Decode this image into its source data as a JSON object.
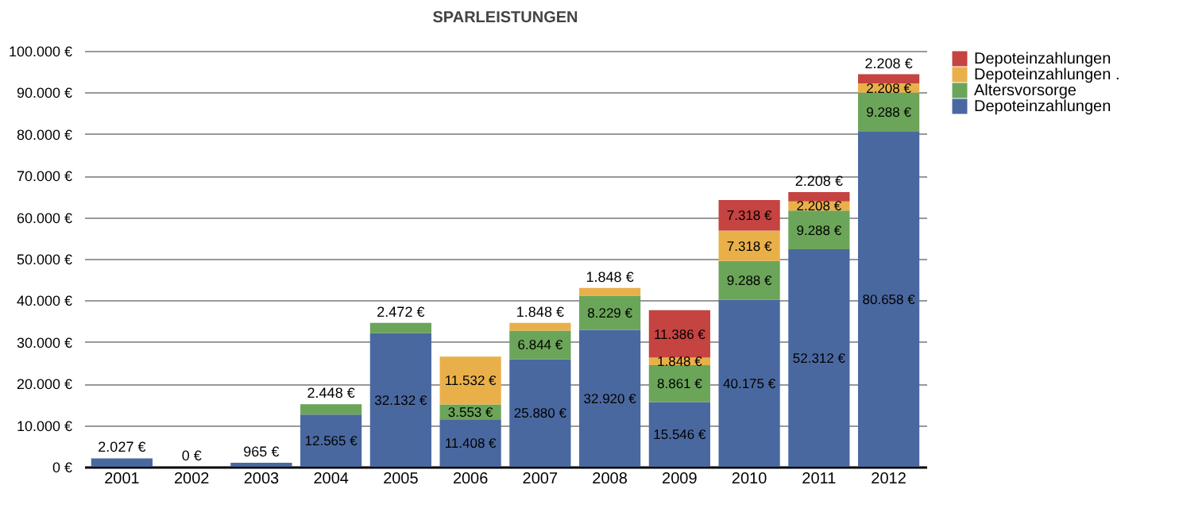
{
  "chart_data": {
    "type": "bar",
    "title": "SPARLEISTUNGEN",
    "stacked": true,
    "categories": [
      "2001",
      "2002",
      "2003",
      "2004",
      "2005",
      "2006",
      "2007",
      "2008",
      "2009",
      "2010",
      "2011",
      "2012"
    ],
    "series": [
      {
        "name": "Depoteinzahlungen",
        "color": "#4a68a0",
        "values": [
          2027,
          0,
          965,
          12565,
          32132,
          11408,
          25880,
          32920,
          15546,
          40175,
          52312,
          80658
        ],
        "value_labels": [
          "2.027 €",
          "0 €",
          "965 €",
          "12.565 €",
          "32.132 €",
          "11.408 €",
          "25.880 €",
          "32.920 €",
          "15.546 €",
          "40.175 €",
          "52.312 €",
          "80.658 €"
        ]
      },
      {
        "name": "Altersvorsorge",
        "color": "#6ba559",
        "values": [
          null,
          null,
          null,
          2448,
          2472,
          3553,
          6844,
          8229,
          8861,
          9288,
          9288,
          9288
        ],
        "value_labels": [
          null,
          null,
          null,
          "2.448 €",
          "2.472 €",
          "3.553 €",
          "6.844 €",
          "8.229 €",
          "8.861 €",
          "9.288 €",
          "9.288 €",
          "9.288 €"
        ]
      },
      {
        "name": "Depoteinzahlungen .",
        "color": "#e9b04a",
        "values": [
          null,
          null,
          null,
          null,
          null,
          11532,
          1848,
          1848,
          1848,
          7318,
          2208,
          2208
        ],
        "value_labels": [
          null,
          null,
          null,
          null,
          null,
          "11.532 €",
          "1.848 €",
          "1.848 €",
          "1.848 €",
          "7.318 €",
          "2.208 €",
          "2.208 €"
        ]
      },
      {
        "name": "Depoteinzahlungen",
        "color": "#c54340",
        "values": [
          null,
          null,
          null,
          null,
          null,
          null,
          null,
          null,
          11386,
          7318,
          2208,
          2208
        ],
        "value_labels": [
          null,
          null,
          null,
          null,
          null,
          null,
          null,
          null,
          "11.386 €",
          "7.318 €",
          "2.208 €",
          "2.208 €"
        ]
      }
    ],
    "ylim": [
      0,
      100000
    ],
    "yticks": [
      {
        "value": 0,
        "label": "0 €"
      },
      {
        "value": 10000,
        "label": "10.000 €"
      },
      {
        "value": 20000,
        "label": "20.000 €"
      },
      {
        "value": 30000,
        "label": "30.000 €"
      },
      {
        "value": 40000,
        "label": "40.000 €"
      },
      {
        "value": 50000,
        "label": "50.000 €"
      },
      {
        "value": 60000,
        "label": "60.000 €"
      },
      {
        "value": 70000,
        "label": "70.000 €"
      },
      {
        "value": 80000,
        "label": "80.000 €"
      },
      {
        "value": 90000,
        "label": "90.000 €"
      },
      {
        "value": 100000,
        "label": "100.000 €"
      }
    ],
    "grid": "y",
    "legend": "top right"
  }
}
